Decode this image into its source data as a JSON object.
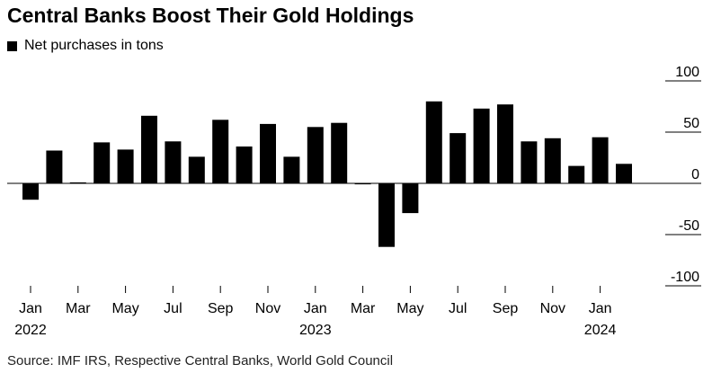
{
  "title": "Central Banks Boost Their Gold Holdings",
  "legend_label": "Net purchases in tons",
  "source": "Source: IMF IRS, Respective Central Banks, World Gold Council",
  "chart_data": {
    "type": "bar",
    "title": "Central Banks Boost Their Gold Holdings",
    "series": [
      {
        "name": "Net purchases in tons",
        "color": "#000000",
        "values": [
          -16,
          32,
          1,
          40,
          33,
          66,
          41,
          26,
          62,
          36,
          58,
          26,
          55,
          59,
          -1,
          -62,
          -29,
          80,
          49,
          73,
          77,
          41,
          44,
          17,
          45,
          19
        ]
      }
    ],
    "categories": [
      "Jan 2022",
      "Feb 2022",
      "Mar 2022",
      "Apr 2022",
      "May 2022",
      "Jun 2022",
      "Jul 2022",
      "Aug 2022",
      "Sep 2022",
      "Oct 2022",
      "Nov 2022",
      "Dec 2022",
      "Jan 2023",
      "Feb 2023",
      "Mar 2023",
      "Apr 2023",
      "May 2023",
      "Jun 2023",
      "Jul 2023",
      "Aug 2023",
      "Sep 2023",
      "Oct 2023",
      "Nov 2023",
      "Dec 2023",
      "Jan 2024",
      "Feb 2024"
    ],
    "x_ticks": [
      {
        "index": 0,
        "label": "Jan",
        "year": "2022"
      },
      {
        "index": 2,
        "label": "Mar",
        "year": ""
      },
      {
        "index": 4,
        "label": "May",
        "year": ""
      },
      {
        "index": 6,
        "label": "Jul",
        "year": ""
      },
      {
        "index": 8,
        "label": "Sep",
        "year": ""
      },
      {
        "index": 10,
        "label": "Nov",
        "year": ""
      },
      {
        "index": 12,
        "label": "Jan",
        "year": "2023"
      },
      {
        "index": 14,
        "label": "Mar",
        "year": ""
      },
      {
        "index": 16,
        "label": "May",
        "year": ""
      },
      {
        "index": 18,
        "label": "Jul",
        "year": ""
      },
      {
        "index": 20,
        "label": "Sep",
        "year": ""
      },
      {
        "index": 22,
        "label": "Nov",
        "year": ""
      },
      {
        "index": 24,
        "label": "Jan",
        "year": "2024"
      }
    ],
    "y_ticks": [
      100,
      50,
      0,
      -50,
      -100
    ],
    "ylim": [
      -100,
      100
    ],
    "xlabel": "",
    "ylabel": "",
    "grid": false
  }
}
